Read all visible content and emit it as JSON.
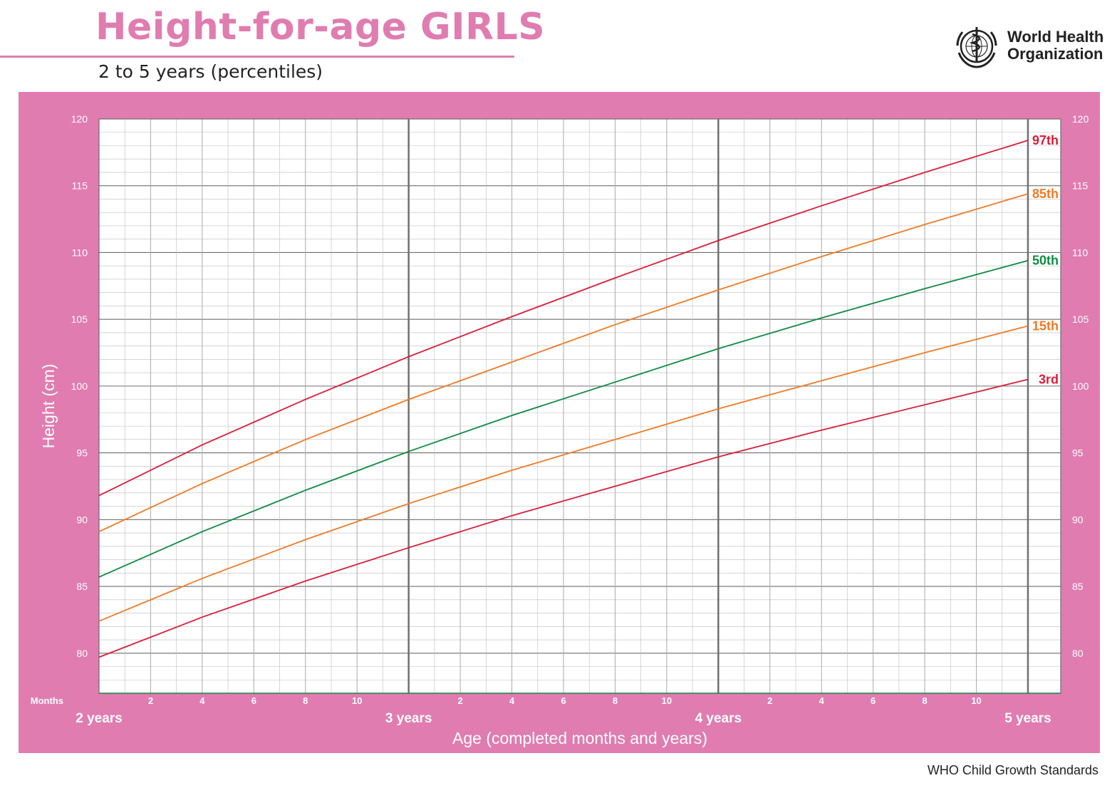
{
  "header": {
    "title": "Height-for-age GIRLS",
    "subtitle": "2 to 5 years (percentiles)",
    "org_line1": "World Health",
    "org_line2": "Organization",
    "footer": "WHO Child Growth Standards"
  },
  "colors": {
    "brand_pink": "#e07cb0",
    "p3": "#d81e3a",
    "p15": "#f07a23",
    "p50": "#0f8a43",
    "p85": "#f07a23",
    "p97": "#d81e3a",
    "grid_major": "#6e6e6e",
    "grid_minor": "#bdbdbd"
  },
  "chart_data": {
    "type": "line",
    "title": "Height-for-age GIRLS",
    "subtitle": "2 to 5 years (percentiles)",
    "xlabel": "Age (completed months and years)",
    "ylabel": "Height (cm)",
    "x_unit_label": "Months",
    "xlim": [
      24,
      60
    ],
    "ylim": [
      77,
      120
    ],
    "y_ticks": [
      80,
      85,
      90,
      95,
      100,
      105,
      110,
      115,
      120
    ],
    "month_ticks": [
      "2",
      "4",
      "6",
      "8",
      "10",
      "2",
      "4",
      "6",
      "8",
      "10",
      "2",
      "4",
      "6",
      "8",
      "10"
    ],
    "month_tick_positions": [
      26,
      28,
      30,
      32,
      34,
      38,
      40,
      42,
      44,
      46,
      50,
      52,
      54,
      56,
      58
    ],
    "year_labels": [
      "2 years",
      "3 years",
      "4 years",
      "5 years"
    ],
    "year_positions": [
      24,
      36,
      48,
      60
    ],
    "grid": true,
    "x": [
      24,
      28,
      32,
      36,
      40,
      44,
      48,
      52,
      56,
      60
    ],
    "series": [
      {
        "name": "97th",
        "color": "#d81e3a",
        "values": [
          91.8,
          95.6,
          99.0,
          102.2,
          105.2,
          108.1,
          110.9,
          113.5,
          116.0,
          118.4
        ]
      },
      {
        "name": "85th",
        "color": "#f07a23",
        "values": [
          89.1,
          92.7,
          96.0,
          99.0,
          101.8,
          104.6,
          107.2,
          109.7,
          112.1,
          114.4
        ]
      },
      {
        "name": "50th",
        "color": "#0f8a43",
        "values": [
          85.7,
          89.1,
          92.2,
          95.1,
          97.8,
          100.3,
          102.8,
          105.1,
          107.3,
          109.4
        ]
      },
      {
        "name": "15th",
        "color": "#f07a23",
        "values": [
          82.4,
          85.6,
          88.5,
          91.2,
          93.7,
          96.0,
          98.3,
          100.4,
          102.5,
          104.5
        ]
      },
      {
        "name": "3rd",
        "color": "#d81e3a",
        "values": [
          79.7,
          82.7,
          85.4,
          87.9,
          90.3,
          92.5,
          94.7,
          96.7,
          98.6,
          100.5
        ]
      }
    ]
  }
}
